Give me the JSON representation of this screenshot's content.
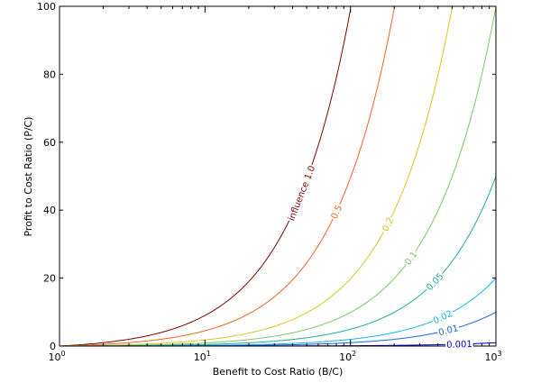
{
  "chart_data": {
    "type": "line",
    "xscale": "log",
    "xlim": [
      1,
      1000
    ],
    "ylim": [
      0,
      100
    ],
    "xlabel": "Benefit to Cost Ratio (B/C)",
    "ylabel": "Profit to Cost Ratio (P/C)",
    "grid": false,
    "x_ticks": [
      {
        "base": "10",
        "exp": "0"
      },
      {
        "base": "10",
        "exp": "1"
      },
      {
        "base": "10",
        "exp": "2"
      },
      {
        "base": "10",
        "exp": "3"
      }
    ],
    "y_ticks": [
      "0",
      "20",
      "40",
      "60",
      "80",
      "100"
    ],
    "series": [
      {
        "label": "influence 1.0",
        "color": "#7f0000",
        "x": [
          1,
          5,
          10,
          20,
          30,
          40,
          50,
          70,
          100
        ],
        "y": [
          0,
          4,
          9,
          19,
          29,
          39,
          49,
          69,
          99
        ],
        "label_at": {
          "x": 46,
          "y": 38
        }
      },
      {
        "label": "0.5",
        "color": "#f0641e",
        "x": [
          1,
          10,
          20,
          40,
          60,
          80,
          100,
          150,
          200
        ],
        "y": [
          0,
          4.5,
          9.5,
          19.5,
          29.5,
          39.5,
          49.5,
          74.5,
          99.5
        ],
        "label_at": {
          "x": 80,
          "y": 41
        }
      },
      {
        "label": "0.2",
        "color": "#d2c81e",
        "x": [
          1,
          20,
          50,
          100,
          150,
          200,
          300,
          400,
          500
        ],
        "y": [
          0,
          3.8,
          9.8,
          19.8,
          29.8,
          39.8,
          59.8,
          79.8,
          99.8
        ],
        "label_at": {
          "x": 180,
          "y": 35
        }
      },
      {
        "label": "0.1",
        "color": "#78c864",
        "x": [
          1,
          20,
          50,
          100,
          200,
          300,
          500,
          700,
          1000
        ],
        "y": [
          0,
          1.9,
          4.9,
          9.9,
          19.9,
          29.9,
          49.9,
          69.9,
          99.9
        ],
        "label_at": {
          "x": 260,
          "y": 27
        }
      },
      {
        "label": "0.05",
        "color": "#1eaaa0",
        "x": [
          1,
          20,
          50,
          100,
          200,
          400,
          600,
          800,
          1000
        ],
        "y": [
          0,
          0.95,
          2.45,
          4.95,
          9.95,
          19.95,
          29.95,
          39.95,
          49.95
        ],
        "label_at": {
          "x": 380,
          "y": 21
        }
      },
      {
        "label": "0.02",
        "color": "#14b4f0",
        "x": [
          1,
          50,
          100,
          200,
          400,
          600,
          800,
          1000
        ],
        "y": [
          0,
          0.98,
          1.98,
          3.98,
          7.98,
          11.98,
          15.98,
          19.98
        ],
        "label_at": {
          "x": 430,
          "y": 11.5
        }
      },
      {
        "label": "0.01",
        "color": "#1e64dc",
        "x": [
          1,
          50,
          100,
          200,
          400,
          600,
          800,
          1000
        ],
        "y": [
          0,
          0.49,
          0.99,
          1.99,
          3.99,
          5.99,
          7.99,
          9.99
        ],
        "label_at": {
          "x": 470,
          "y": 6.2
        }
      },
      {
        "label": "0.001",
        "color": "#0000c8",
        "x": [
          1,
          100,
          300,
          600,
          1000
        ],
        "y": [
          0,
          0.099,
          0.299,
          0.599,
          0.999
        ],
        "label_at": {
          "x": 560,
          "y": 1.8
        }
      }
    ]
  }
}
